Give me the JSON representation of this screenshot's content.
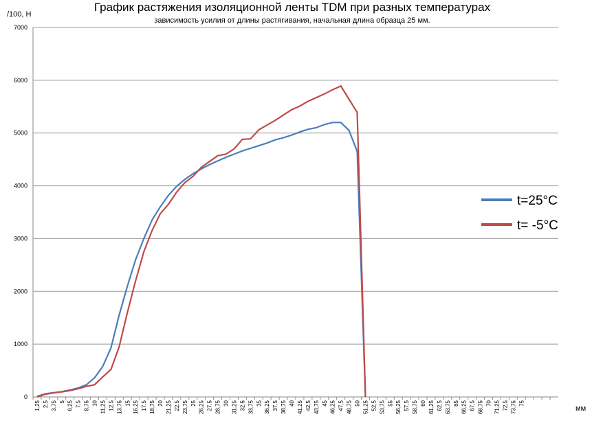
{
  "chart_data": {
    "type": "line",
    "title": "График растяжения изоляционной ленты TDM при разных температурах",
    "subtitle": "зависимость усилия от длины растягивания, начальная длина образца 25 мм.",
    "y_label": "/100, Н",
    "x_label": "мм",
    "categories": [
      "1,25",
      "2,5",
      "3,75",
      "5",
      "6,25",
      "7,5",
      "8,75",
      "10",
      "11,25",
      "12,5",
      "13,75",
      "15",
      "16,25",
      "17,5",
      "18,75",
      "20",
      "21,25",
      "22,5",
      "23,75",
      "25",
      "26,25",
      "27,5",
      "28,75",
      "30",
      "31,25",
      "32,5",
      "33,75",
      "35",
      "36,25",
      "37,5",
      "38,75",
      "40",
      "41,25",
      "42,5",
      "43,75",
      "45",
      "46,25",
      "47,5",
      "48,75",
      "50",
      "51,25",
      "52,5",
      "53,75",
      "55",
      "56,25",
      "57,5",
      "58,75",
      "60",
      "61,25",
      "62,5",
      "63,75",
      "65",
      "66,25",
      "67,5",
      "68,75",
      "70",
      "71,25",
      "72,5",
      "73,75",
      "75",
      null,
      null,
      null,
      null
    ],
    "series": [
      {
        "name": "t=25°C",
        "color": "#4a7ebb",
        "values": [
          10,
          60,
          80,
          100,
          130,
          170,
          230,
          360,
          580,
          930,
          1550,
          2100,
          2600,
          3000,
          3350,
          3600,
          3820,
          3990,
          4120,
          4230,
          4320,
          4400,
          4470,
          4540,
          4600,
          4660,
          4710,
          4760,
          4810,
          4870,
          4910,
          4960,
          5020,
          5070,
          5100,
          5160,
          5200,
          5200,
          5050,
          4650,
          0,
          null,
          null,
          null,
          null,
          null,
          null,
          null,
          null,
          null,
          null,
          null,
          null,
          null,
          null,
          null,
          null,
          null,
          null,
          null,
          null,
          null,
          null,
          null
        ]
      },
      {
        "name": "t= -5°C",
        "color": "#be4b48",
        "values": [
          0,
          50,
          75,
          95,
          120,
          155,
          200,
          230,
          380,
          520,
          950,
          1600,
          2200,
          2750,
          3150,
          3470,
          3650,
          3880,
          4060,
          4180,
          4350,
          4460,
          4570,
          4600,
          4700,
          4880,
          4890,
          5060,
          5150,
          5240,
          5340,
          5440,
          5510,
          5600,
          5670,
          5740,
          5820,
          5890,
          5640,
          5390,
          0,
          null,
          null,
          null,
          null,
          null,
          null,
          null,
          null,
          null,
          null,
          null,
          null,
          null,
          null,
          null,
          null,
          null,
          null,
          null,
          null,
          null,
          null,
          null
        ]
      }
    ],
    "ylim": [
      0,
      7000
    ],
    "yticks": [
      0,
      1000,
      2000,
      3000,
      4000,
      5000,
      6000,
      7000
    ],
    "grid": true,
    "legend": "right"
  }
}
